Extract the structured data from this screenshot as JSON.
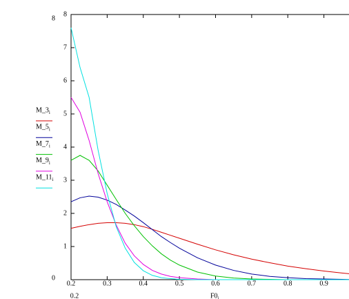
{
  "chart_data": {
    "type": "line",
    "x_label": "F0",
    "x_label_subscript": "i",
    "x": [
      0.2,
      0.225,
      0.25,
      0.275,
      0.3,
      0.325,
      0.35,
      0.375,
      0.4,
      0.425,
      0.45,
      0.475,
      0.5,
      0.55,
      0.6,
      0.65,
      0.7,
      0.75,
      0.8,
      0.85,
      0.9,
      0.95,
      1.0
    ],
    "series": [
      {
        "name": "M_3",
        "subscript": "i",
        "color": "#d40000",
        "values": [
          1.55,
          1.61,
          1.66,
          1.7,
          1.72,
          1.72,
          1.7,
          1.66,
          1.6,
          1.52,
          1.43,
          1.34,
          1.25,
          1.07,
          0.9,
          0.75,
          0.62,
          0.51,
          0.41,
          0.33,
          0.26,
          0.2,
          0.15
        ]
      },
      {
        "name": "M_5",
        "subscript": "i",
        "color": "#000099",
        "values": [
          2.35,
          2.47,
          2.52,
          2.49,
          2.4,
          2.27,
          2.1,
          1.92,
          1.72,
          1.51,
          1.3,
          1.12,
          0.95,
          0.66,
          0.44,
          0.28,
          0.17,
          0.1,
          0.06,
          0.03,
          0.02,
          0.01,
          0
        ]
      },
      {
        "name": "M_7",
        "subscript": "i",
        "color": "#00c000",
        "values": [
          3.6,
          3.75,
          3.6,
          3.28,
          2.85,
          2.42,
          2.0,
          1.63,
          1.3,
          1.02,
          0.78,
          0.59,
          0.44,
          0.23,
          0.11,
          0.05,
          0.02,
          0.01,
          0,
          0,
          0,
          0,
          0
        ]
      },
      {
        "name": "M_9",
        "subscript": "i",
        "color": "#e000e0",
        "values": [
          5.5,
          5.05,
          4.2,
          3.2,
          2.35,
          1.65,
          1.1,
          0.72,
          0.46,
          0.28,
          0.17,
          0.1,
          0.06,
          0.02,
          0,
          0,
          0,
          0,
          0,
          0,
          0,
          0,
          0
        ]
      },
      {
        "name": "M_11",
        "subscript": "i",
        "color": "#00e0e0",
        "values": [
          7.6,
          6.4,
          5.5,
          3.9,
          2.6,
          1.6,
          0.95,
          0.52,
          0.27,
          0.13,
          0.06,
          0.03,
          0.01,
          0,
          0,
          0,
          0,
          0,
          0,
          0,
          0,
          0,
          0
        ]
      }
    ],
    "xlim": [
      0.2,
      1.0
    ],
    "xticks": [
      0.2,
      0.3,
      0.4,
      0.5,
      0.6,
      0.7,
      0.8,
      0.9
    ],
    "ylim": [
      0,
      8
    ],
    "yticks": [
      1,
      2,
      3,
      4,
      5,
      6,
      7,
      8
    ]
  }
}
